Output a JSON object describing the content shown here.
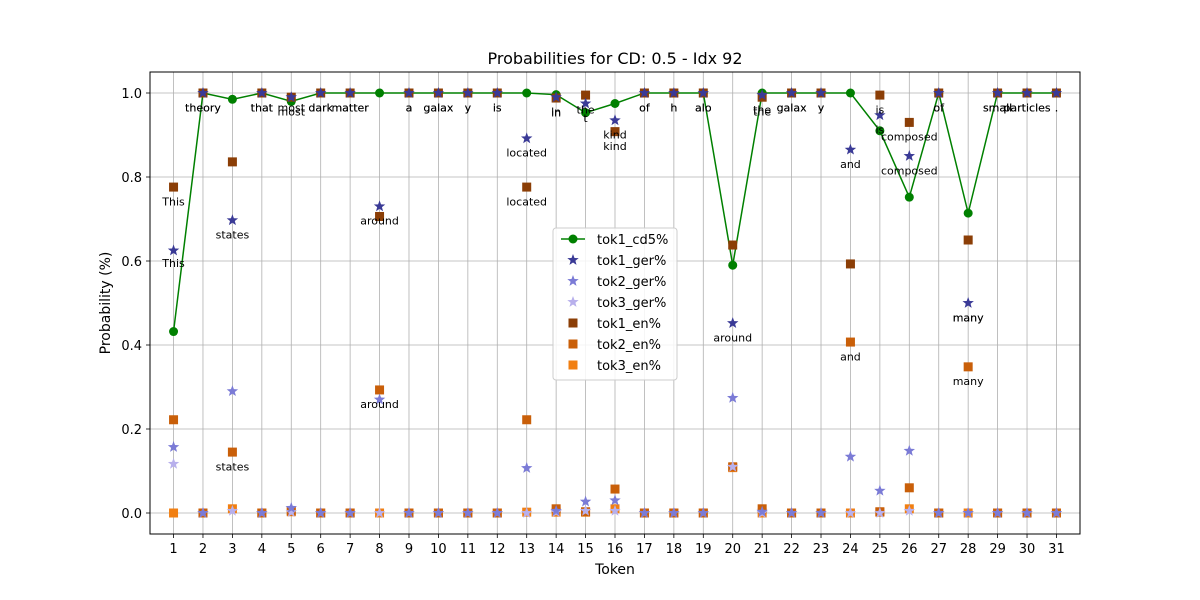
{
  "chart_data": {
    "type": "line",
    "title": "Probabilities for CD: 0.5 - Idx 92",
    "xlabel": "Token",
    "ylabel": "Probability (%)",
    "xlim": [
      0.2,
      31.8
    ],
    "ylim": [
      -0.05,
      1.05
    ],
    "x": [
      1,
      2,
      3,
      4,
      5,
      6,
      7,
      8,
      9,
      10,
      11,
      12,
      13,
      14,
      15,
      16,
      17,
      18,
      19,
      20,
      21,
      22,
      23,
      24,
      25,
      26,
      27,
      28,
      29,
      30,
      31
    ],
    "yticks": [
      "0.0",
      "0.2",
      "0.4",
      "0.6",
      "0.8",
      "1.0"
    ],
    "grid": true,
    "legend_position": "center",
    "colors": {
      "tok1_cd5": "#008000",
      "tok1_ger": "#3a3a96",
      "tok2_ger": "#7b7bd6",
      "tok3_ger": "#b8b0ec",
      "tok1_en": "#8b3e06",
      "tok2_en": "#c95f09",
      "tok3_en": "#f17f12"
    },
    "series": [
      {
        "name": "tok1_cd5%",
        "key": "tok1_cd5",
        "marker": "circle-line",
        "values": [
          0.432,
          1.0,
          0.985,
          1.0,
          0.98,
          1.0,
          1.0,
          1.0,
          1.0,
          1.0,
          1.0,
          1.0,
          1.0,
          0.996,
          0.953,
          0.975,
          1.0,
          1.0,
          1.0,
          0.59,
          1.0,
          1.0,
          1.0,
          1.0,
          0.91,
          0.752,
          1.0,
          0.714,
          1.0,
          1.0,
          1.0
        ]
      },
      {
        "name": "tok1_ger%",
        "key": "tok1_ger",
        "marker": "star",
        "values": [
          0.625,
          1.0,
          0.697,
          1.0,
          0.99,
          1.0,
          1.0,
          0.73,
          1.0,
          1.0,
          1.0,
          1.0,
          0.892,
          0.99,
          0.975,
          0.935,
          1.0,
          1.0,
          1.0,
          0.452,
          0.995,
          1.0,
          1.0,
          0.865,
          0.947,
          0.85,
          1.0,
          0.5,
          1.0,
          1.0,
          1.0
        ]
      },
      {
        "name": "tok2_ger%",
        "key": "tok2_ger",
        "marker": "star",
        "values": [
          0.157,
          0.0,
          0.29,
          0.0,
          0.012,
          0.0,
          0.0,
          0.27,
          0.0,
          0.0,
          0.0,
          0.0,
          0.107,
          0.005,
          0.027,
          0.03,
          0.0,
          0.0,
          0.0,
          0.274,
          0.003,
          0.0,
          0.0,
          0.134,
          0.053,
          0.148,
          0.0,
          0.0,
          0.0,
          0.0,
          0.0
        ]
      },
      {
        "name": "tok3_ger%",
        "key": "tok3_ger",
        "marker": "star",
        "values": [
          0.117,
          0.0,
          0.005,
          0.0,
          0.002,
          0.0,
          0.0,
          0.0,
          0.0,
          0.0,
          0.0,
          0.0,
          0.0,
          0.002,
          0.005,
          0.005,
          0.0,
          0.0,
          0.0,
          0.11,
          0.0,
          0.0,
          0.0,
          0.0,
          0.0,
          0.005,
          0.0,
          0.0,
          0.0,
          0.0,
          0.0
        ]
      },
      {
        "name": "tok1_en%",
        "key": "tok1_en",
        "marker": "square",
        "values": [
          0.776,
          1.0,
          0.836,
          1.0,
          0.99,
          1.0,
          1.0,
          0.706,
          1.0,
          1.0,
          1.0,
          1.0,
          0.776,
          0.988,
          0.995,
          0.908,
          1.0,
          1.0,
          1.0,
          0.638,
          0.99,
          1.0,
          1.0,
          0.593,
          0.995,
          0.93,
          1.0,
          0.65,
          1.0,
          1.0,
          1.0
        ]
      },
      {
        "name": "tok2_en%",
        "key": "tok2_en",
        "marker": "square",
        "values": [
          0.222,
          0.0,
          0.145,
          0.0,
          0.005,
          0.0,
          0.0,
          0.293,
          0.0,
          0.0,
          0.0,
          0.0,
          0.222,
          0.01,
          0.003,
          0.057,
          0.0,
          0.0,
          0.0,
          0.11,
          0.01,
          0.0,
          0.0,
          0.407,
          0.003,
          0.06,
          0.0,
          0.348,
          0.0,
          0.0,
          0.0
        ]
      },
      {
        "name": "tok3_en%",
        "key": "tok3_en",
        "marker": "square",
        "values": [
          0.0,
          0.0,
          0.01,
          0.0,
          0.003,
          0.0,
          0.0,
          0.0,
          0.0,
          0.0,
          0.0,
          0.0,
          0.002,
          0.002,
          0.002,
          0.01,
          0.0,
          0.0,
          0.0,
          0.108,
          0.0,
          0.0,
          0.0,
          0.0,
          0.002,
          0.01,
          0.0,
          0.0,
          0.0,
          0.0,
          0.0
        ]
      }
    ],
    "annotations": [
      {
        "x": 1,
        "y": 0.742,
        "text": "This"
      },
      {
        "x": 1,
        "y": 0.595,
        "text": "This"
      },
      {
        "x": 2,
        "y": 0.966,
        "text": "theory"
      },
      {
        "x": 2,
        "y": 0.966,
        "text": "theory"
      },
      {
        "x": 3,
        "y": 0.663,
        "text": "states"
      },
      {
        "x": 3,
        "y": 0.111,
        "text": "states"
      },
      {
        "x": 4,
        "y": 0.966,
        "text": "that"
      },
      {
        "x": 4,
        "y": 0.966,
        "text": "that"
      },
      {
        "x": 5,
        "y": 0.966,
        "text": "most"
      },
      {
        "x": 5,
        "y": 0.956,
        "text": "most"
      },
      {
        "x": 6,
        "y": 0.966,
        "text": "dark"
      },
      {
        "x": 6,
        "y": 0.966,
        "text": "dark"
      },
      {
        "x": 7,
        "y": 0.966,
        "text": "matter"
      },
      {
        "x": 7,
        "y": 0.966,
        "text": "matter"
      },
      {
        "x": 8,
        "y": 0.696,
        "text": "around"
      },
      {
        "x": 8,
        "y": 0.259,
        "text": "around"
      },
      {
        "x": 9,
        "y": 0.966,
        "text": "a"
      },
      {
        "x": 9,
        "y": 0.966,
        "text": "a"
      },
      {
        "x": 10,
        "y": 0.966,
        "text": "galax"
      },
      {
        "x": 10,
        "y": 0.966,
        "text": "galax"
      },
      {
        "x": 11,
        "y": 0.966,
        "text": "y"
      },
      {
        "x": 11,
        "y": 0.966,
        "text": "y"
      },
      {
        "x": 12,
        "y": 0.966,
        "text": "is"
      },
      {
        "x": 12,
        "y": 0.966,
        "text": "is"
      },
      {
        "x": 13,
        "y": 0.858,
        "text": "located"
      },
      {
        "x": 13,
        "y": 0.742,
        "text": "located"
      },
      {
        "x": 14,
        "y": 0.956,
        "text": "in"
      },
      {
        "x": 14,
        "y": 0.954,
        "text": "in"
      },
      {
        "x": 15,
        "y": 0.941,
        "text": "t"
      },
      {
        "x": 15,
        "y": 0.961,
        "text": "the"
      },
      {
        "x": 16,
        "y": 0.874,
        "text": "kind"
      },
      {
        "x": 16,
        "y": 0.901,
        "text": "kind"
      },
      {
        "x": 17,
        "y": 0.966,
        "text": "of"
      },
      {
        "x": 17,
        "y": 0.966,
        "text": "of"
      },
      {
        "x": 18,
        "y": 0.966,
        "text": "h"
      },
      {
        "x": 18,
        "y": 0.966,
        "text": "h"
      },
      {
        "x": 19,
        "y": 0.966,
        "text": "alo"
      },
      {
        "x": 19,
        "y": 0.966,
        "text": "alo"
      },
      {
        "x": 20,
        "y": 0.418,
        "text": "around"
      },
      {
        "x": 21,
        "y": 0.956,
        "text": "the"
      },
      {
        "x": 21,
        "y": 0.961,
        "text": "the"
      },
      {
        "x": 22,
        "y": 0.966,
        "text": "galax"
      },
      {
        "x": 22,
        "y": 0.966,
        "text": "galax"
      },
      {
        "x": 23,
        "y": 0.966,
        "text": "y"
      },
      {
        "x": 23,
        "y": 0.966,
        "text": "y"
      },
      {
        "x": 24,
        "y": 0.831,
        "text": "and"
      },
      {
        "x": 24,
        "y": 0.373,
        "text": "and"
      },
      {
        "x": 25,
        "y": 0.961,
        "text": "is"
      },
      {
        "x": 25,
        "y": 0.913,
        "text": "is"
      },
      {
        "x": 26,
        "y": 0.896,
        "text": "composed"
      },
      {
        "x": 26,
        "y": 0.816,
        "text": "composed"
      },
      {
        "x": 27,
        "y": 0.966,
        "text": "of"
      },
      {
        "x": 27,
        "y": 0.966,
        "text": "of"
      },
      {
        "x": 28,
        "y": 0.466,
        "text": "many"
      },
      {
        "x": 28,
        "y": 0.466,
        "text": "many"
      },
      {
        "x": 28,
        "y": 0.314,
        "text": "many"
      },
      {
        "x": 29,
        "y": 0.966,
        "text": "small"
      },
      {
        "x": 29,
        "y": 0.966,
        "text": "small"
      },
      {
        "x": 30,
        "y": 0.966,
        "text": "particles"
      },
      {
        "x": 30,
        "y": 0.966,
        "text": "particles"
      },
      {
        "x": 31,
        "y": 0.966,
        "text": "."
      },
      {
        "x": 31,
        "y": 0.966,
        "text": "."
      }
    ]
  }
}
